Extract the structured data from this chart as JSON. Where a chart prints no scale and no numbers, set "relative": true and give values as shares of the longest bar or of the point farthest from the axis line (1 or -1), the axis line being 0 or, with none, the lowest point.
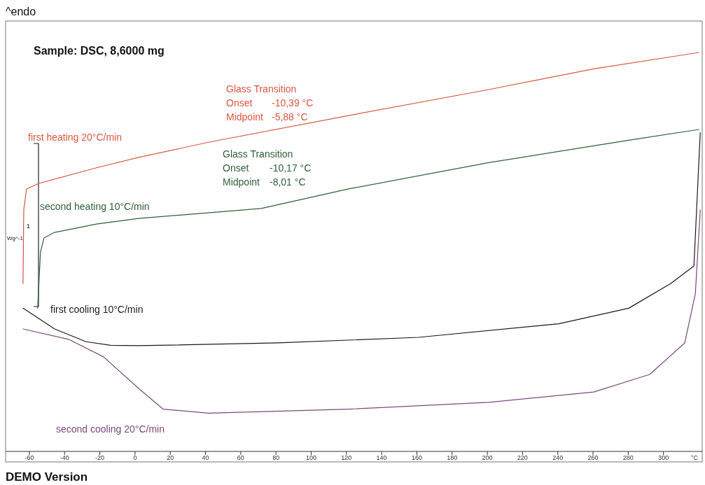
{
  "chart_data": {
    "type": "line",
    "title": "Sample: DSC, 8,6000 mg",
    "xlabel": "°C",
    "relative": true,
    "legend": false,
    "grid": false,
    "xlim": [
      -73.5,
      322
    ],
    "xticks": [
      -60,
      -40,
      -20,
      0,
      20,
      40,
      60,
      80,
      100,
      120,
      140,
      160,
      180,
      200,
      220,
      240,
      260,
      280,
      300
    ],
    "annotations": [
      "^endo",
      "Glass Transition",
      "Onset",
      "-10,39 °C",
      "Midpoint",
      "-5,88 °C",
      "Glass Transition",
      "Onset",
      "-10,17 °C",
      "Midpoint",
      "-8,01 °C",
      "1",
      "Wg^-1",
      "DEMO Version"
    ],
    "series": [
      {
        "name": "first heating 20°C/min",
        "color": "#d9573f",
        "x": [
          -63.6,
          -63.2,
          -61.6,
          -54.5,
          -21.9,
          2.0,
          41.7,
          121.3,
          200.8,
          260.4,
          320.1
        ],
        "values": [
          0.421,
          0.605,
          0.658,
          0.672,
          0.711,
          0.737,
          0.775,
          0.842,
          0.907,
          0.959,
          1.0
        ]
      },
      {
        "name": "second heating 10°C/min",
        "color": "#2f5f3a",
        "x": [
          -55.3,
          -53.7,
          -51.7,
          -45.7,
          -21.9,
          2.0,
          71.6,
          121.3,
          200.8,
          280.3,
          320.1
        ],
        "values": [
          0.359,
          0.5,
          0.535,
          0.549,
          0.57,
          0.584,
          0.609,
          0.658,
          0.724,
          0.78,
          0.807
        ]
      },
      {
        "name": "first cooling 10°C/min",
        "color": "#1a1a1a",
        "x": [
          -63.6,
          -45.7,
          -27.8,
          -13.9,
          2.0,
          81.5,
          161.0,
          240.6,
          280.3,
          304.2,
          317.3,
          320.9
        ],
        "values": [
          0.359,
          0.307,
          0.275,
          0.266,
          0.265,
          0.272,
          0.286,
          0.32,
          0.359,
          0.421,
          0.465,
          0.799
        ]
      },
      {
        "name": "second cooling 20°C/min",
        "color": "#7a4a7a",
        "x": [
          -63.6,
          -37.8,
          -17.9,
          2.0,
          15.9,
          41.7,
          121.3,
          200.8,
          260.4,
          292.2,
          312.1,
          318.1,
          320.9
        ],
        "values": [
          0.307,
          0.281,
          0.237,
          0.158,
          0.106,
          0.096,
          0.106,
          0.123,
          0.149,
          0.193,
          0.272,
          0.395,
          0.605
        ]
      }
    ]
  }
}
